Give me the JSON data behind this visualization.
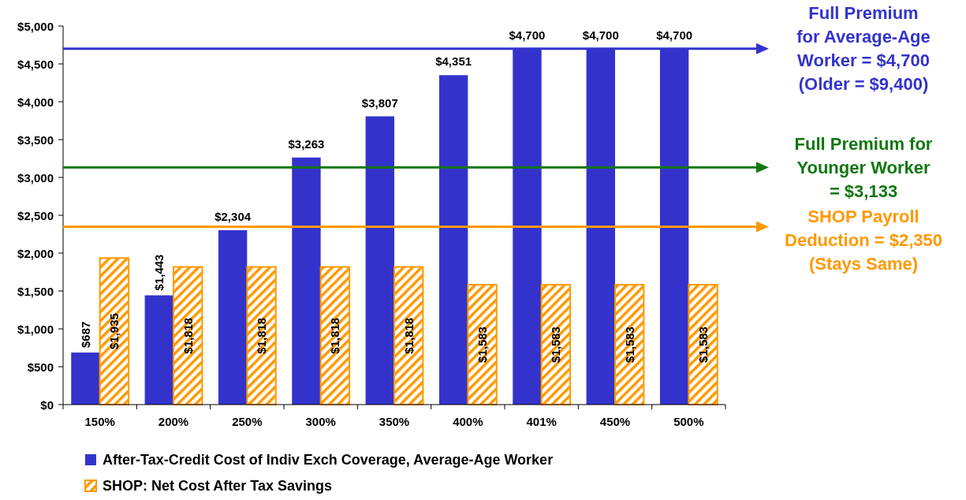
{
  "chart_data": {
    "type": "bar",
    "categories": [
      "150%",
      "200%",
      "250%",
      "300%",
      "350%",
      "400%",
      "401%",
      "450%",
      "500%"
    ],
    "series": [
      {
        "name": "After-Tax-Credit Cost of Indiv Exch Coverage, Average-Age Worker",
        "color": "#3333cc",
        "values": [
          687,
          1443,
          2304,
          3263,
          3807,
          4351,
          4700,
          4700,
          4700
        ],
        "value_labels": [
          "$687",
          "$1,443",
          "$2,304",
          "$3,263",
          "$3,807",
          "$4,351",
          "$4,700",
          "$4,700",
          "$4,700"
        ]
      },
      {
        "name": "SHOP: Net Cost After Tax Savings",
        "color": "#ff9900",
        "values": [
          1935,
          1818,
          1818,
          1818,
          1818,
          1583,
          1583,
          1583,
          1583
        ],
        "value_labels": [
          "$1,935",
          "$1,818",
          "$1,818",
          "$1,818",
          "$1,818",
          "$1,583",
          "$1,583",
          "$1,583",
          "$1,583"
        ]
      }
    ],
    "ylim": [
      0,
      5000
    ],
    "yticks": [
      {
        "value": 0,
        "label": "$0"
      },
      {
        "value": 500,
        "label": "$500"
      },
      {
        "value": 1000,
        "label": "$1,000"
      },
      {
        "value": 1500,
        "label": "$1,500"
      },
      {
        "value": 2000,
        "label": "$2,000"
      },
      {
        "value": 2500,
        "label": "$2,500"
      },
      {
        "value": 3000,
        "label": "$3,000"
      },
      {
        "value": 3500,
        "label": "$3,500"
      },
      {
        "value": 4000,
        "label": "$4,000"
      },
      {
        "value": 4500,
        "label": "$4,500"
      },
      {
        "value": 5000,
        "label": "$5,000"
      }
    ],
    "ref_lines": [
      {
        "axis": "y",
        "value": 4700,
        "label": "Full Premium\nfor Average-Age\nWorker = $4,700\n(Older = $9,400)",
        "color": "#3333cc"
      },
      {
        "axis": "y",
        "value": 3133,
        "label": "Full Premium for\nYounger Worker\n= $3,133",
        "color": "#117711"
      },
      {
        "axis": "y",
        "value": 2350,
        "label": "SHOP Payroll\nDeduction = $2,350\n(Stays Same)",
        "color": "#ff9900"
      }
    ],
    "grid": false,
    "legend": "bottom"
  }
}
